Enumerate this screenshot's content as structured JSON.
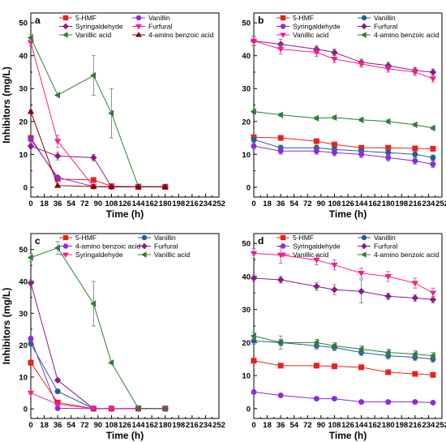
{
  "chart_data": [
    {
      "type": "line",
      "panel": "a",
      "xlabel": "Time (h)",
      "ylabel": "Inhibitors (mg/L)",
      "xlim": [
        0,
        252
      ],
      "ylim": [
        -3,
        53
      ],
      "xticks": [
        0,
        18,
        36,
        54,
        72,
        90,
        108,
        126,
        144,
        162,
        180,
        198,
        216,
        234,
        252
      ],
      "yticks": [
        0,
        10,
        20,
        30,
        40,
        50
      ],
      "legend_position": "top",
      "series": [
        {
          "name": "5-HMF",
          "color": "#e8221b",
          "marker": "square",
          "x": [
            0,
            36,
            84,
            108,
            144,
            180
          ],
          "y": [
            15,
            2.5,
            2.2,
            0.3,
            0.1,
            0.1
          ],
          "err": [
            0.5,
            0.4,
            0.4,
            0,
            0,
            0
          ]
        },
        {
          "name": "Vanillin",
          "color": "#8a2be2",
          "marker": "circle",
          "x": [
            0,
            36,
            84,
            108,
            144,
            180
          ],
          "y": [
            14.5,
            3,
            0.2,
            0.1,
            0.1,
            0.1
          ],
          "err": [
            0.5,
            0.3,
            0,
            0,
            0,
            0
          ]
        },
        {
          "name": "Syringaldehyde",
          "color": "#8b1a89",
          "marker": "diamond",
          "x": [
            0,
            36,
            84,
            108,
            144,
            180
          ],
          "y": [
            12.5,
            9.5,
            9,
            0.2,
            0.1,
            0.1
          ],
          "err": [
            0.8,
            1.2,
            1,
            0,
            0,
            0
          ]
        },
        {
          "name": "Furfural",
          "color": "#ff1a8c",
          "marker": "triangle-down",
          "x": [
            0,
            36,
            84,
            108,
            144,
            180
          ],
          "y": [
            44,
            14,
            0.2,
            0.1,
            0.1,
            0.1
          ],
          "err": [
            1,
            1.8,
            0,
            0,
            0,
            0
          ]
        },
        {
          "name": "Vanillic acid",
          "color": "#2e7d32",
          "marker": "triangle-left",
          "x": [
            0,
            36,
            84,
            108,
            144,
            180
          ],
          "y": [
            45.5,
            28,
            34,
            22.5,
            0.2,
            0.1
          ],
          "err": [
            1,
            0,
            6,
            7.5,
            0,
            0
          ]
        },
        {
          "name": "4-amino benzoic acid",
          "color": "#8b0000",
          "marker": "triangle-up",
          "x": [
            0,
            36,
            84,
            108,
            144,
            180
          ],
          "y": [
            23,
            0.5,
            0.2,
            0.1,
            0.1,
            0.1
          ],
          "err": [
            0.5,
            0,
            0,
            0,
            0,
            0
          ]
        }
      ]
    },
    {
      "type": "line",
      "panel": "b",
      "xlabel": "Time (h)",
      "ylabel": "",
      "xlim": [
        0,
        252
      ],
      "ylim": [
        -3,
        53
      ],
      "xticks": [
        0,
        18,
        36,
        54,
        72,
        90,
        108,
        126,
        144,
        162,
        180,
        198,
        216,
        234,
        252
      ],
      "yticks": [
        0,
        10,
        20,
        30,
        40,
        50
      ],
      "legend_position": "top",
      "series": [
        {
          "name": "5-HMF",
          "color": "#e8221b",
          "marker": "square",
          "x": [
            0,
            36,
            84,
            108,
            144,
            180,
            216,
            240
          ],
          "y": [
            15.2,
            15,
            14,
            13,
            12,
            12,
            11.8,
            11.7
          ],
          "err": [
            0.5,
            0.5,
            0.4,
            0.4,
            0.4,
            0.4,
            0.4,
            0.4
          ]
        },
        {
          "name": "Vanillin",
          "color": "#1f5f99",
          "marker": "circle",
          "x": [
            0,
            36,
            84,
            108,
            144,
            180,
            216,
            240
          ],
          "y": [
            14.5,
            12,
            12,
            11.5,
            11,
            10.5,
            10,
            9
          ],
          "err": [
            0.8,
            0.8,
            0.8,
            0.8,
            0.8,
            0.8,
            0.8,
            0.8
          ]
        },
        {
          "name": "Syringaldehyde",
          "color": "#8a2be2",
          "marker": "circle",
          "x": [
            0,
            36,
            84,
            108,
            144,
            180,
            216,
            240
          ],
          "y": [
            12.5,
            11,
            11,
            10.5,
            10,
            9,
            8,
            7
          ],
          "err": [
            1,
            1,
            1,
            1,
            1,
            1,
            1,
            1
          ]
        },
        {
          "name": "Furfural",
          "color": "#8b1a89",
          "marker": "diamond",
          "x": [
            0,
            36,
            84,
            108,
            144,
            180,
            216,
            240
          ],
          "y": [
            44.5,
            43.5,
            42,
            41,
            38,
            37,
            35.5,
            35
          ],
          "err": [
            1.2,
            1.5,
            1,
            1,
            1,
            1,
            1,
            1
          ]
        },
        {
          "name": "Vanillic acid",
          "color": "#ff1a8c",
          "marker": "triangle-down",
          "x": [
            0,
            36,
            84,
            108,
            144,
            180,
            216,
            240
          ],
          "y": [
            44.5,
            42,
            41,
            39,
            37.5,
            36,
            35,
            33
          ],
          "err": [
            1.5,
            1.5,
            1.2,
            1.2,
            1,
            1,
            1,
            1
          ]
        },
        {
          "name": "4-amino benzoic acid",
          "color": "#2e7d32",
          "marker": "triangle-left",
          "x": [
            0,
            36,
            84,
            108,
            144,
            180,
            216,
            240
          ],
          "y": [
            23,
            22,
            21,
            21.2,
            20.5,
            20,
            19,
            18
          ],
          "err": [
            0.5,
            0.5,
            0.5,
            0.5,
            0.5,
            0.5,
            0.5,
            0.5
          ]
        }
      ]
    },
    {
      "type": "line",
      "panel": "c",
      "xlabel": "Time (h)",
      "ylabel": "Inhibitors (mg/L)",
      "xlim": [
        0,
        252
      ],
      "ylim": [
        -3,
        55
      ],
      "xticks": [
        0,
        18,
        36,
        54,
        72,
        90,
        108,
        126,
        144,
        162,
        180,
        198,
        216,
        234,
        252
      ],
      "yticks": [
        0,
        10,
        20,
        30,
        40,
        50
      ],
      "legend_position": "top",
      "series": [
        {
          "name": "5-HMF",
          "color": "#e8221b",
          "marker": "square",
          "x": [
            0,
            36,
            84,
            108,
            144,
            180
          ],
          "y": [
            14.5,
            2,
            0.1,
            0.1,
            0.1,
            0.1
          ],
          "err": [
            0.8,
            0.3,
            0,
            0,
            0,
            0
          ]
        },
        {
          "name": "Vanillin",
          "color": "#1f5f99",
          "marker": "circle",
          "x": [
            0,
            36,
            84,
            108,
            144,
            180
          ],
          "y": [
            20.5,
            5.5,
            0.1,
            0.1,
            0.1,
            0.1
          ],
          "err": [
            0.8,
            0.5,
            0,
            0,
            0,
            0
          ]
        },
        {
          "name": "4-amino benzoic acid",
          "color": "#8a2be2",
          "marker": "circle",
          "x": [
            0,
            36,
            84,
            108,
            144,
            180
          ],
          "y": [
            22,
            0.2,
            0.1,
            0.1,
            0.1,
            0.1
          ],
          "err": [
            0.8,
            0,
            0,
            0,
            0,
            0
          ]
        },
        {
          "name": "Furfural",
          "color": "#8b1a89",
          "marker": "diamond",
          "x": [
            0,
            36,
            84,
            108,
            144,
            180
          ],
          "y": [
            39.5,
            9,
            0.1,
            0.1,
            0.1,
            0.1
          ],
          "err": [
            1,
            0.5,
            0,
            0,
            0,
            0
          ]
        },
        {
          "name": "Syringaldehyde",
          "color": "#ff1a8c",
          "marker": "triangle-down",
          "x": [
            0,
            36,
            84,
            108,
            144,
            180
          ],
          "y": [
            5,
            1.5,
            0.1,
            0.1,
            0.1,
            0.1
          ],
          "err": [
            0.3,
            0.3,
            0,
            0,
            0,
            0
          ]
        },
        {
          "name": "Vanillic acid",
          "color": "#2e7d32",
          "marker": "triangle-left",
          "x": [
            0,
            36,
            84,
            108,
            144,
            180
          ],
          "y": [
            47.5,
            50.5,
            33,
            14.5,
            0.2,
            0.1
          ],
          "err": [
            1.2,
            2,
            7,
            0,
            0,
            0
          ]
        }
      ]
    },
    {
      "type": "line",
      "panel": "d",
      "xlabel": "Time (h)",
      "ylabel": "",
      "xlim": [
        0,
        252
      ],
      "ylim": [
        -3,
        53
      ],
      "xticks": [
        0,
        18,
        36,
        54,
        72,
        90,
        108,
        126,
        144,
        162,
        180,
        198,
        216,
        234,
        252
      ],
      "yticks": [
        0,
        10,
        20,
        30,
        40,
        50
      ],
      "legend_position": "top",
      "series": [
        {
          "name": "5-HMF",
          "color": "#e8221b",
          "marker": "square",
          "x": [
            0,
            36,
            84,
            108,
            144,
            180,
            216,
            240
          ],
          "y": [
            14.5,
            13,
            13,
            12.8,
            12.5,
            11,
            10.5,
            10.2
          ],
          "err": [
            0.4,
            0.4,
            0.4,
            0.4,
            0.4,
            0.4,
            0.4,
            0.4
          ]
        },
        {
          "name": "Vanillin",
          "color": "#1f5f99",
          "marker": "circle",
          "x": [
            0,
            36,
            84,
            108,
            144,
            180,
            216,
            240
          ],
          "y": [
            20.5,
            20,
            19,
            18.5,
            17,
            16,
            15.5,
            15
          ],
          "err": [
            1,
            1,
            1,
            1,
            1,
            1,
            1,
            1
          ]
        },
        {
          "name": "Syringaldehyde",
          "color": "#8a2be2",
          "marker": "circle",
          "x": [
            0,
            36,
            84,
            108,
            144,
            180,
            216,
            240
          ],
          "y": [
            5,
            4,
            3,
            3,
            2,
            2,
            2,
            1.8
          ],
          "err": [
            0.3,
            0.3,
            0.3,
            0.3,
            0.3,
            0.3,
            0.3,
            0.3
          ]
        },
        {
          "name": "Furfural",
          "color": "#8b1a89",
          "marker": "diamond",
          "x": [
            0,
            36,
            84,
            108,
            144,
            180,
            216,
            240
          ],
          "y": [
            39.5,
            39,
            37,
            36,
            35.5,
            34,
            33.5,
            33
          ],
          "err": [
            1,
            1,
            1.2,
            1.5,
            3.5,
            1,
            1,
            1
          ]
        },
        {
          "name": "Vanillic acid",
          "color": "#ff1a8c",
          "marker": "triangle-down",
          "x": [
            0,
            36,
            84,
            108,
            144,
            180,
            216,
            240
          ],
          "y": [
            47,
            46.5,
            45,
            43.5,
            41,
            40,
            38,
            35
          ],
          "err": [
            1.5,
            2.5,
            1.5,
            1.5,
            1.5,
            1.5,
            1.5,
            1.5
          ]
        },
        {
          "name": "4-amino benzoic acid",
          "color": "#2e7d32",
          "marker": "triangle-left",
          "x": [
            0,
            36,
            84,
            108,
            144,
            180,
            216,
            240
          ],
          "y": [
            22,
            20,
            20,
            19,
            18,
            17,
            16.5,
            16
          ],
          "err": [
            1,
            2,
            1,
            1,
            1,
            1,
            1,
            1
          ]
        }
      ]
    }
  ]
}
